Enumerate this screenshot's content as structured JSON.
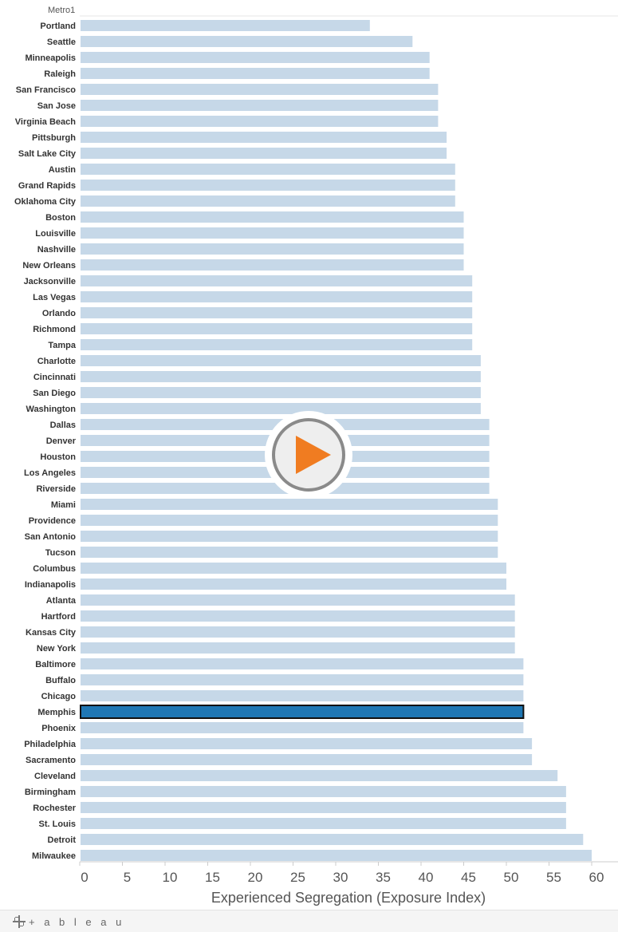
{
  "footer": {
    "brand": "+ a b l e a u"
  },
  "colors": {
    "bar": "#c6d8e8",
    "highlight": "#1f77b4",
    "highlight_border": "#111111",
    "play_triangle": "#f07c21"
  },
  "chart_data": {
    "type": "bar",
    "orientation": "horizontal",
    "category_header": "Metro1",
    "xlabel": "Experienced Segregation (Exposure Index)",
    "xlim": [
      0,
      60
    ],
    "xticks": [
      0,
      5,
      10,
      15,
      20,
      25,
      30,
      35,
      40,
      45,
      50,
      55,
      60
    ],
    "highlighted": "Memphis",
    "categories": [
      "Portland",
      "Seattle",
      "Minneapolis",
      "Raleigh",
      "San Francisco",
      "San Jose",
      "Virginia Beach",
      "Pittsburgh",
      "Salt Lake City",
      "Austin",
      "Grand Rapids",
      "Oklahoma City",
      "Boston",
      "Louisville",
      "Nashville",
      "New Orleans",
      "Jacksonville",
      "Las Vegas",
      "Orlando",
      "Richmond",
      "Tampa",
      "Charlotte",
      "Cincinnati",
      "San Diego",
      "Washington",
      "Dallas",
      "Denver",
      "Houston",
      "Los Angeles",
      "Riverside",
      "Miami",
      "Providence",
      "San Antonio",
      "Tucson",
      "Columbus",
      "Indianapolis",
      "Atlanta",
      "Hartford",
      "Kansas City",
      "New York",
      "Baltimore",
      "Buffalo",
      "Chicago",
      "Memphis",
      "Phoenix",
      "Philadelphia",
      "Sacramento",
      "Cleveland",
      "Birmingham",
      "Rochester",
      "St. Louis",
      "Detroit",
      "Milwaukee"
    ],
    "values": [
      34,
      39,
      41,
      41,
      42,
      42,
      42,
      43,
      43,
      44,
      44,
      44,
      45,
      45,
      45,
      45,
      46,
      46,
      46,
      46,
      46,
      47,
      47,
      47,
      47,
      48,
      48,
      48,
      48,
      48,
      49,
      49,
      49,
      49,
      50,
      50,
      51,
      51,
      51,
      51,
      52,
      52,
      52,
      52,
      52,
      53,
      53,
      56,
      57,
      57,
      57,
      59,
      60
    ]
  }
}
